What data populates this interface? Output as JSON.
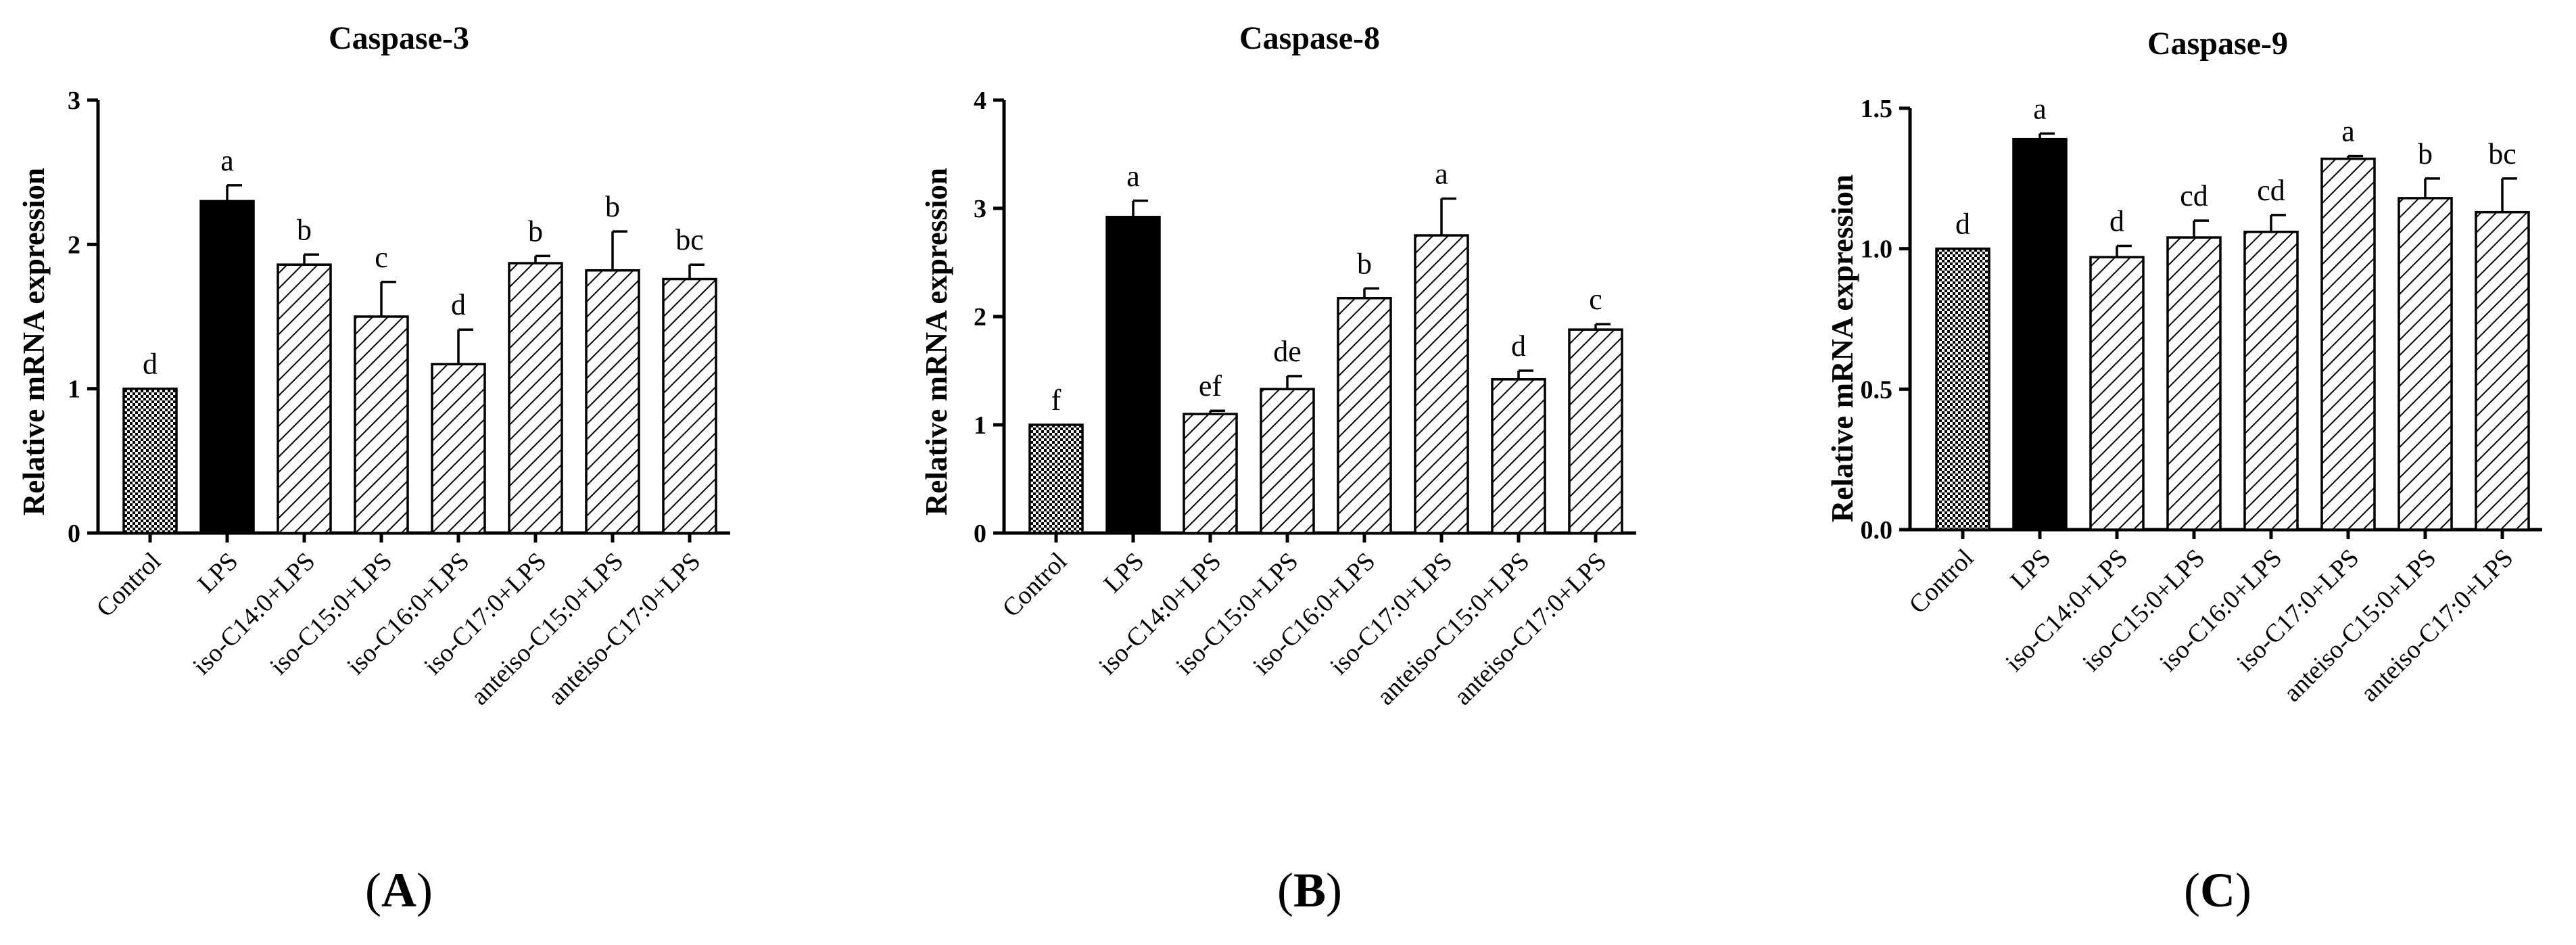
{
  "chart_data": [
    {
      "type": "bar",
      "panel": "A",
      "title": "Caspase-3",
      "xlabel": "",
      "ylabel": "Relative mRNA expression",
      "ylim": [
        0,
        3
      ],
      "yticks": [
        "0",
        "1",
        "2",
        "3"
      ],
      "yticks_values": [
        0,
        1,
        2,
        3
      ],
      "categories": [
        "Control",
        "LPS",
        "iso-C14:0+LPS",
        "iso-C15:0+LPS",
        "iso-C16:0+LPS",
        "iso-C17:0+LPS",
        "anteiso-C15:0+LPS",
        "anteiso-C17:0+LPS"
      ],
      "values": [
        1.0,
        2.3,
        1.86,
        1.5,
        1.17,
        1.87,
        1.82,
        1.76
      ],
      "errors": [
        0.0,
        0.11,
        0.07,
        0.24,
        0.24,
        0.05,
        0.27,
        0.1
      ],
      "letters": [
        "d",
        "a",
        "b",
        "c",
        "d",
        "b",
        "b",
        "bc"
      ],
      "fills": [
        "checker",
        "solid",
        "hatch",
        "hatch",
        "hatch",
        "hatch",
        "hatch",
        "hatch"
      ]
    },
    {
      "type": "bar",
      "panel": "B",
      "title": "Caspase-8",
      "xlabel": "",
      "ylabel": "Relative mRNA expression",
      "ylim": [
        0,
        4
      ],
      "yticks": [
        "0",
        "1",
        "2",
        "3",
        "4"
      ],
      "yticks_values": [
        0,
        1,
        2,
        3,
        4
      ],
      "categories": [
        "Control",
        "LPS",
        "iso-C14:0+LPS",
        "iso-C15:0+LPS",
        "iso-C16:0+LPS",
        "iso-C17:0+LPS",
        "anteiso-C15:0+LPS",
        "anteiso-C17:0+LPS"
      ],
      "values": [
        1.0,
        2.92,
        1.1,
        1.33,
        2.17,
        2.75,
        1.42,
        1.88
      ],
      "errors": [
        0.0,
        0.15,
        0.03,
        0.12,
        0.09,
        0.34,
        0.08,
        0.05
      ],
      "letters": [
        "f",
        "a",
        "ef",
        "de",
        "b",
        "a",
        "d",
        "c"
      ],
      "fills": [
        "checker",
        "solid",
        "hatch",
        "hatch",
        "hatch",
        "hatch",
        "hatch",
        "hatch"
      ]
    },
    {
      "type": "bar",
      "panel": "C",
      "title": "Caspase-9",
      "xlabel": "",
      "ylabel": "Relative mRNA expression",
      "ylim": [
        0,
        1.5
      ],
      "yticks": [
        "0.0",
        "0.5",
        "1.0",
        "1.5"
      ],
      "yticks_values": [
        0,
        0.5,
        1.0,
        1.5
      ],
      "categories": [
        "Control",
        "LPS",
        "iso-C14:0+LPS",
        "iso-C15:0+LPS",
        "iso-C16:0+LPS",
        "iso-C17:0+LPS",
        "anteiso-C15:0+LPS",
        "anteiso-C17:0+LPS"
      ],
      "values": [
        1.0,
        1.39,
        0.97,
        1.04,
        1.06,
        1.32,
        1.18,
        1.13
      ],
      "errors": [
        0.0,
        0.02,
        0.04,
        0.06,
        0.06,
        0.01,
        0.07,
        0.12
      ],
      "letters": [
        "d",
        "a",
        "d",
        "cd",
        "cd",
        "a",
        "b",
        "bc"
      ],
      "fills": [
        "checker",
        "solid",
        "hatch",
        "hatch",
        "hatch",
        "hatch",
        "hatch",
        "hatch"
      ]
    }
  ],
  "panel_labels": [
    {
      "open": "(",
      "letter": "A",
      "close": ")"
    },
    {
      "open": "(",
      "letter": "B",
      "close": ")"
    },
    {
      "open": "(",
      "letter": "C",
      "close": ")"
    }
  ]
}
